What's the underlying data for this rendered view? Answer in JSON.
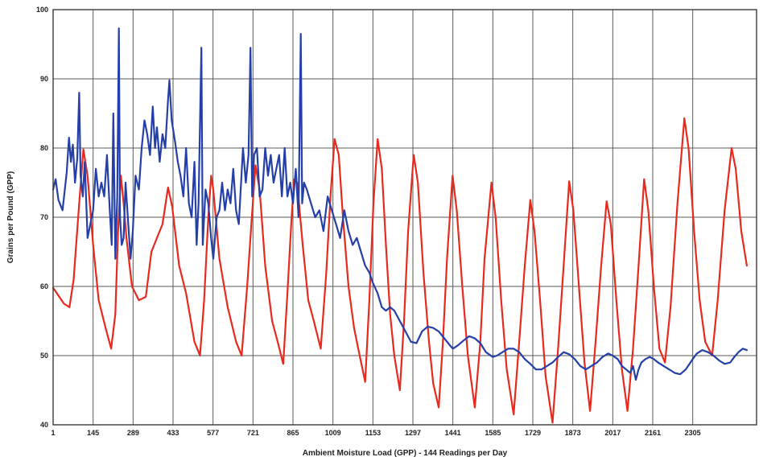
{
  "chart_data": {
    "type": "line",
    "title": "",
    "xlabel": "Ambient Moisture Load (GPP) - 144 Readings per Day",
    "ylabel": "Grains per Pound (GPP)",
    "xlim": [
      1,
      2535
    ],
    "ylim": [
      40,
      100
    ],
    "grid": true,
    "legend": "none",
    "x_ticks": [
      1,
      145,
      289,
      433,
      577,
      721,
      865,
      1009,
      1153,
      1297,
      1441,
      1585,
      1729,
      1873,
      2017,
      2161,
      2305
    ],
    "y_ticks": [
      40,
      50,
      60,
      70,
      80,
      90,
      100
    ],
    "series": [
      {
        "color": "#e8291e",
        "points": [
          [
            1,
            59.8
          ],
          [
            40,
            57.5
          ],
          [
            60,
            57.0
          ],
          [
            75,
            61.0
          ],
          [
            95,
            72.0
          ],
          [
            110,
            79.8
          ],
          [
            125,
            76.0
          ],
          [
            145,
            66.0
          ],
          [
            165,
            58.0
          ],
          [
            190,
            54.0
          ],
          [
            210,
            51.0
          ],
          [
            225,
            56.0
          ],
          [
            235,
            68.0
          ],
          [
            245,
            76.0
          ],
          [
            255,
            72.0
          ],
          [
            265,
            67.0
          ],
          [
            285,
            60.0
          ],
          [
            310,
            58.0
          ],
          [
            335,
            58.5
          ],
          [
            355,
            65.0
          ],
          [
            395,
            69.0
          ],
          [
            415,
            74.3
          ],
          [
            430,
            71.5
          ],
          [
            455,
            63.0
          ],
          [
            480,
            59.0
          ],
          [
            510,
            52.0
          ],
          [
            530,
            50.0
          ],
          [
            545,
            58.0
          ],
          [
            560,
            70.0
          ],
          [
            570,
            76.0
          ],
          [
            578,
            74.0
          ],
          [
            600,
            64.0
          ],
          [
            630,
            57.0
          ],
          [
            660,
            52.0
          ],
          [
            680,
            50.0
          ],
          [
            700,
            60.0
          ],
          [
            715,
            69.0
          ],
          [
            730,
            77.5
          ],
          [
            745,
            74.0
          ],
          [
            765,
            63.0
          ],
          [
            790,
            55.0
          ],
          [
            810,
            52.0
          ],
          [
            830,
            48.8
          ],
          [
            845,
            59.0
          ],
          [
            860,
            70.0
          ],
          [
            870,
            75.5
          ],
          [
            880,
            75.0
          ],
          [
            900,
            66.0
          ],
          [
            920,
            58.0
          ],
          [
            940,
            55.0
          ],
          [
            965,
            51.0
          ],
          [
            985,
            62.0
          ],
          [
            1000,
            73.0
          ],
          [
            1015,
            81.3
          ],
          [
            1030,
            79.0
          ],
          [
            1045,
            70.0
          ],
          [
            1065,
            60.0
          ],
          [
            1085,
            54.0
          ],
          [
            1100,
            51.0
          ],
          [
            1125,
            46.2
          ],
          [
            1140,
            58.0
          ],
          [
            1155,
            72.0
          ],
          [
            1170,
            81.3
          ],
          [
            1185,
            77.0
          ],
          [
            1200,
            66.0
          ],
          [
            1215,
            56.0
          ],
          [
            1230,
            50.0
          ],
          [
            1250,
            45.0
          ],
          [
            1265,
            55.0
          ],
          [
            1280,
            68.0
          ],
          [
            1300,
            79.0
          ],
          [
            1315,
            75.0
          ],
          [
            1335,
            62.0
          ],
          [
            1355,
            52.0
          ],
          [
            1370,
            46.0
          ],
          [
            1390,
            42.5
          ],
          [
            1405,
            52.0
          ],
          [
            1420,
            64.0
          ],
          [
            1440,
            76.0
          ],
          [
            1455,
            71.0
          ],
          [
            1475,
            60.0
          ],
          [
            1495,
            50.0
          ],
          [
            1520,
            42.5
          ],
          [
            1540,
            52.0
          ],
          [
            1555,
            64.0
          ],
          [
            1580,
            75.0
          ],
          [
            1595,
            70.0
          ],
          [
            1615,
            58.0
          ],
          [
            1635,
            48.0
          ],
          [
            1660,
            41.5
          ],
          [
            1680,
            52.0
          ],
          [
            1700,
            63.0
          ],
          [
            1720,
            72.5
          ],
          [
            1735,
            68.0
          ],
          [
            1755,
            58.0
          ],
          [
            1775,
            47.0
          ],
          [
            1800,
            40.3
          ],
          [
            1820,
            51.0
          ],
          [
            1840,
            63.0
          ],
          [
            1860,
            75.2
          ],
          [
            1875,
            71.0
          ],
          [
            1895,
            60.0
          ],
          [
            1915,
            49.0
          ],
          [
            1935,
            42.0
          ],
          [
            1955,
            52.0
          ],
          [
            1975,
            63.0
          ],
          [
            1995,
            72.3
          ],
          [
            2010,
            69.0
          ],
          [
            2030,
            58.0
          ],
          [
            2050,
            48.0
          ],
          [
            2070,
            42.0
          ],
          [
            2090,
            51.0
          ],
          [
            2110,
            63.0
          ],
          [
            2130,
            75.5
          ],
          [
            2145,
            71.0
          ],
          [
            2165,
            60.0
          ],
          [
            2185,
            51.0
          ],
          [
            2205,
            49.0
          ],
          [
            2225,
            57.0
          ],
          [
            2250,
            72.0
          ],
          [
            2275,
            84.3
          ],
          [
            2290,
            80.0
          ],
          [
            2310,
            68.0
          ],
          [
            2330,
            58.0
          ],
          [
            2350,
            52.0
          ],
          [
            2375,
            50.0
          ],
          [
            2395,
            58.0
          ],
          [
            2420,
            71.0
          ],
          [
            2445,
            80.0
          ],
          [
            2460,
            77.0
          ],
          [
            2480,
            68.0
          ],
          [
            2500,
            63.0
          ]
        ]
      },
      {
        "color": "#2440a8",
        "points": [
          [
            1,
            74.0
          ],
          [
            10,
            75.5
          ],
          [
            20,
            72.5
          ],
          [
            35,
            71.0
          ],
          [
            50,
            76.5
          ],
          [
            58,
            81.5
          ],
          [
            65,
            78.0
          ],
          [
            72,
            80.5
          ],
          [
            80,
            75.0
          ],
          [
            88,
            78.5
          ],
          [
            95,
            88.0
          ],
          [
            100,
            76.0
          ],
          [
            108,
            73.0
          ],
          [
            115,
            78.0
          ],
          [
            125,
            67.0
          ],
          [
            135,
            69.0
          ],
          [
            145,
            71.0
          ],
          [
            155,
            77.0
          ],
          [
            165,
            73.0
          ],
          [
            175,
            75.0
          ],
          [
            185,
            73.0
          ],
          [
            195,
            79.0
          ],
          [
            205,
            71.0
          ],
          [
            212,
            66.0
          ],
          [
            218,
            85.0
          ],
          [
            225,
            64.0
          ],
          [
            232,
            73.0
          ],
          [
            238,
            97.3
          ],
          [
            242,
            70.0
          ],
          [
            248,
            66.0
          ],
          [
            255,
            67.0
          ],
          [
            262,
            75.0
          ],
          [
            270,
            70.0
          ],
          [
            280,
            64.0
          ],
          [
            288,
            68.0
          ],
          [
            298,
            76.0
          ],
          [
            310,
            74.0
          ],
          [
            320,
            80.0
          ],
          [
            330,
            84.0
          ],
          [
            340,
            82.0
          ],
          [
            350,
            79.0
          ],
          [
            360,
            86.0
          ],
          [
            368,
            80.0
          ],
          [
            375,
            83.0
          ],
          [
            385,
            78.0
          ],
          [
            395,
            82.0
          ],
          [
            405,
            80.0
          ],
          [
            415,
            87.0
          ],
          [
            420,
            89.8
          ],
          [
            428,
            84.0
          ],
          [
            440,
            81.0
          ],
          [
            450,
            78.0
          ],
          [
            460,
            76.0
          ],
          [
            470,
            73.0
          ],
          [
            480,
            80.0
          ],
          [
            490,
            72.0
          ],
          [
            500,
            70.0
          ],
          [
            510,
            78.0
          ],
          [
            518,
            66.0
          ],
          [
            525,
            72.0
          ],
          [
            535,
            94.5
          ],
          [
            540,
            66.0
          ],
          [
            550,
            74.0
          ],
          [
            560,
            72.0
          ],
          [
            570,
            67.0
          ],
          [
            578,
            64.0
          ],
          [
            590,
            70.0
          ],
          [
            600,
            71.0
          ],
          [
            610,
            75.0
          ],
          [
            620,
            71.0
          ],
          [
            630,
            74.0
          ],
          [
            640,
            72.0
          ],
          [
            650,
            77.0
          ],
          [
            660,
            71.0
          ],
          [
            670,
            69.0
          ],
          [
            685,
            80.0
          ],
          [
            695,
            75.0
          ],
          [
            705,
            79.0
          ],
          [
            712,
            94.5
          ],
          [
            718,
            73.0
          ],
          [
            725,
            79.0
          ],
          [
            735,
            80.0
          ],
          [
            745,
            73.0
          ],
          [
            755,
            74.0
          ],
          [
            765,
            80.0
          ],
          [
            775,
            76.0
          ],
          [
            785,
            79.0
          ],
          [
            795,
            75.0
          ],
          [
            805,
            77.0
          ],
          [
            815,
            79.0
          ],
          [
            825,
            73.0
          ],
          [
            835,
            80.0
          ],
          [
            845,
            73.0
          ],
          [
            855,
            75.0
          ],
          [
            865,
            72.0
          ],
          [
            875,
            77.0
          ],
          [
            885,
            70.0
          ],
          [
            893,
            96.5
          ],
          [
            898,
            72.0
          ],
          [
            905,
            75.0
          ],
          [
            915,
            74.0
          ],
          [
            930,
            72.0
          ],
          [
            945,
            70.0
          ],
          [
            960,
            71.0
          ],
          [
            975,
            68.0
          ],
          [
            990,
            73.0
          ],
          [
            1005,
            71.0
          ],
          [
            1020,
            69.0
          ],
          [
            1035,
            67.0
          ],
          [
            1050,
            71.0
          ],
          [
            1065,
            68.0
          ],
          [
            1080,
            66.0
          ],
          [
            1095,
            67.0
          ],
          [
            1110,
            65.0
          ],
          [
            1125,
            63.0
          ],
          [
            1140,
            62.0
          ],
          [
            1153,
            60.5
          ],
          [
            1170,
            59.0
          ],
          [
            1185,
            57.0
          ],
          [
            1200,
            56.5
          ],
          [
            1215,
            57.0
          ],
          [
            1230,
            56.5
          ],
          [
            1250,
            55.0
          ],
          [
            1270,
            53.5
          ],
          [
            1290,
            52.0
          ],
          [
            1310,
            51.8
          ],
          [
            1330,
            53.5
          ],
          [
            1350,
            54.2
          ],
          [
            1370,
            54.0
          ],
          [
            1390,
            53.5
          ],
          [
            1410,
            52.5
          ],
          [
            1430,
            51.5
          ],
          [
            1441,
            51.0
          ],
          [
            1460,
            51.5
          ],
          [
            1480,
            52.2
          ],
          [
            1500,
            52.8
          ],
          [
            1520,
            52.5
          ],
          [
            1540,
            51.8
          ],
          [
            1560,
            50.5
          ],
          [
            1585,
            49.8
          ],
          [
            1600,
            50.0
          ],
          [
            1620,
            50.5
          ],
          [
            1640,
            51.0
          ],
          [
            1660,
            51.0
          ],
          [
            1680,
            50.5
          ],
          [
            1700,
            49.5
          ],
          [
            1720,
            48.8
          ],
          [
            1740,
            48.0
          ],
          [
            1760,
            48.0
          ],
          [
            1780,
            48.5
          ],
          [
            1800,
            49.0
          ],
          [
            1820,
            49.8
          ],
          [
            1840,
            50.5
          ],
          [
            1860,
            50.2
          ],
          [
            1880,
            49.5
          ],
          [
            1900,
            48.5
          ],
          [
            1920,
            48.0
          ],
          [
            1940,
            48.5
          ],
          [
            1960,
            49.0
          ],
          [
            1980,
            49.8
          ],
          [
            2000,
            50.3
          ],
          [
            2017,
            50.0
          ],
          [
            2035,
            49.5
          ],
          [
            2050,
            48.5
          ],
          [
            2065,
            48.0
          ],
          [
            2080,
            47.5
          ],
          [
            2090,
            48.5
          ],
          [
            2100,
            46.5
          ],
          [
            2110,
            48.0
          ],
          [
            2120,
            49.0
          ],
          [
            2135,
            49.5
          ],
          [
            2150,
            49.8
          ],
          [
            2165,
            49.5
          ],
          [
            2180,
            49.0
          ],
          [
            2200,
            48.5
          ],
          [
            2220,
            48.0
          ],
          [
            2240,
            47.5
          ],
          [
            2260,
            47.3
          ],
          [
            2280,
            48.0
          ],
          [
            2305,
            49.5
          ],
          [
            2320,
            50.3
          ],
          [
            2340,
            50.8
          ],
          [
            2360,
            50.5
          ],
          [
            2380,
            50.0
          ],
          [
            2400,
            49.3
          ],
          [
            2420,
            48.8
          ],
          [
            2440,
            49.0
          ],
          [
            2455,
            49.8
          ],
          [
            2470,
            50.5
          ],
          [
            2485,
            51.0
          ],
          [
            2500,
            50.8
          ]
        ]
      }
    ]
  }
}
